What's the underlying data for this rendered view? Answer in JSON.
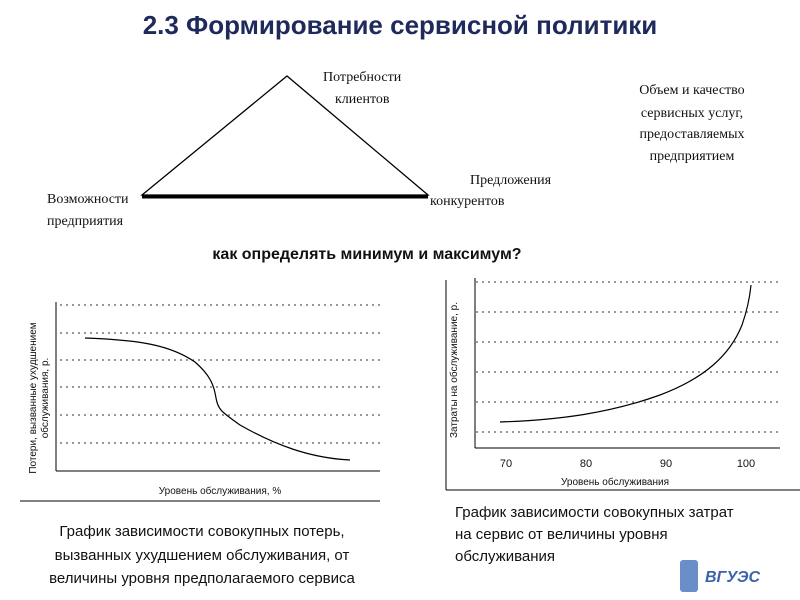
{
  "title": "2.3 Формирование сервисной политики",
  "triangle": {
    "top": [
      "Потребности",
      "клиентов"
    ],
    "left": [
      "Возможности",
      "предприятия"
    ],
    "right": [
      "Предложения",
      "конкурентов"
    ]
  },
  "note": [
    "Объем и качество",
    "сервисных услуг,",
    "предоставляемых",
    "предприятием"
  ],
  "question": "как определять минимум и максимум?",
  "chart_left": {
    "y_label": [
      "Потери, вызванные ухудшением",
      "обслуживания, р."
    ],
    "x_label": "Уровень обслуживания, %",
    "caption": [
      "График зависимости совокупных потерь,",
      "вызванных ухудшением обслуживания, от",
      "величины уровня предполагаемого сервиса"
    ]
  },
  "chart_right": {
    "y_label": "Затраты на обслуживание, р.",
    "x_ticks": [
      "70",
      "80",
      "90",
      "100"
    ],
    "x_label": "Уровень обслуживания",
    "caption": [
      "График зависимости совокупных затрат",
      "на сервис от величины уровня",
      "обслуживания"
    ]
  },
  "logo": "ВГУЭС"
}
